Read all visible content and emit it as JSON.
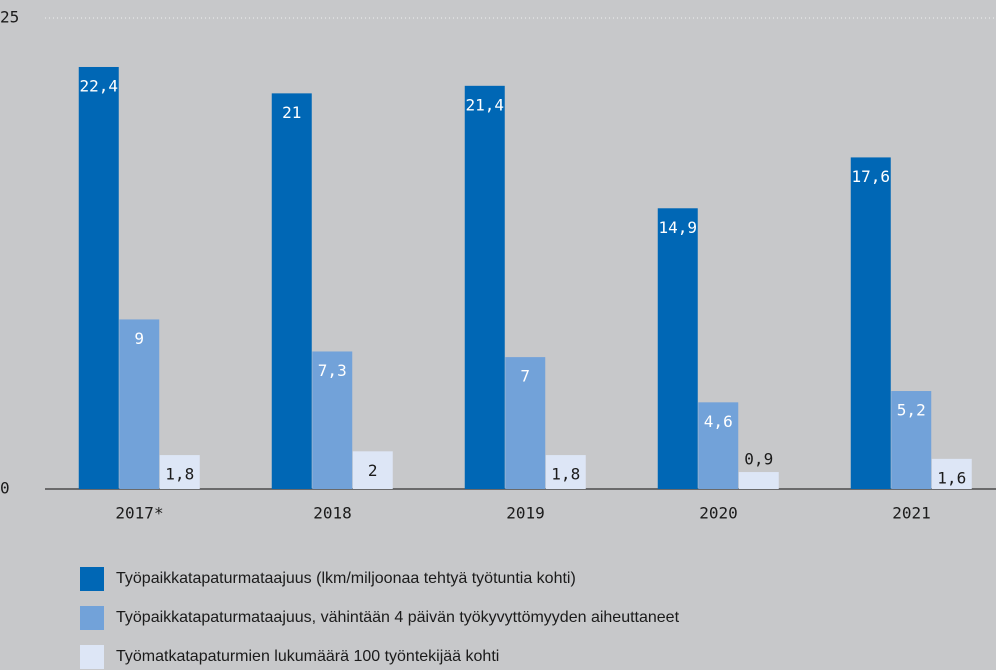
{
  "chart_data": {
    "type": "bar",
    "categories": [
      "2017*",
      "2018",
      "2019",
      "2020",
      "2021"
    ],
    "series": [
      {
        "name": "Työpaikkatapaturmataajuus (lkm/miljoonaa tehtyä työtuntia kohti)",
        "color": "#0067b5",
        "values": [
          22.4,
          21,
          21.4,
          14.9,
          17.6
        ],
        "value_labels": [
          "22,4",
          "21",
          "21,4",
          "14,9",
          "17,6"
        ]
      },
      {
        "name": "Työpaikkatapaturmataajuus, vähintään 4 päivän työkyvyttömyyden aiheuttaneet",
        "color": "#72a2d9",
        "values": [
          9,
          7.3,
          7,
          4.6,
          5.2
        ],
        "value_labels": [
          "9",
          "7,3",
          "7",
          "4,6",
          "5,2"
        ]
      },
      {
        "name": "Työmatkatapaturmien lukumäärä 100 työntekijää kohti",
        "color": "#dde6f6",
        "values": [
          1.8,
          2,
          1.8,
          0.9,
          1.6
        ],
        "value_labels": [
          "1,8",
          "2",
          "1,8",
          "0,9",
          "1,6"
        ]
      }
    ],
    "ylim": [
      0,
      25
    ],
    "yticks": [
      0,
      25
    ]
  }
}
